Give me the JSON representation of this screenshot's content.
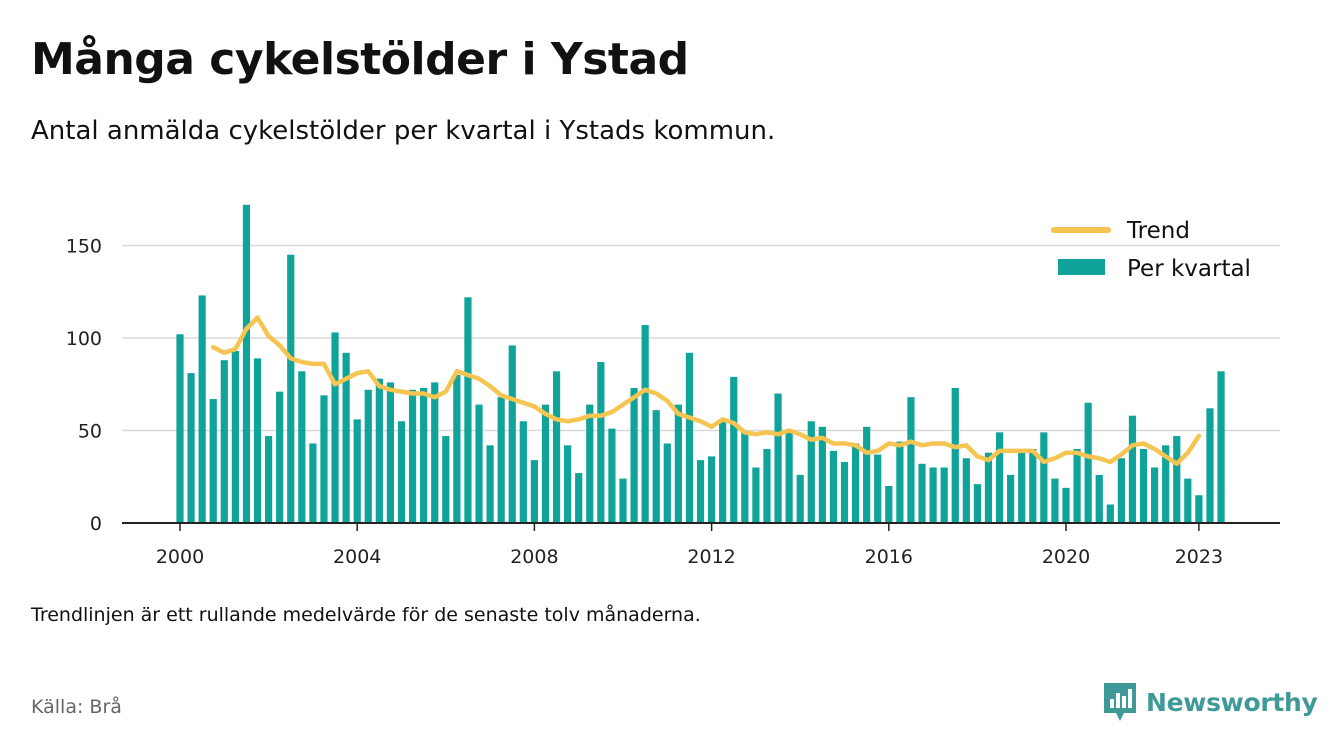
{
  "header": {
    "title": "Många cykelstölder i Ystad",
    "subtitle": "Antal anmälda cykelstölder per kvartal i Ystads kommun."
  },
  "footer": {
    "note": "Trendlinjen är ett rullande medelvärde för de senaste tolv månaderna.",
    "source": "Källa: Brå",
    "brand": "Newsworthy"
  },
  "colors": {
    "bars": "#0fa39a",
    "trend": "#f6c451",
    "grid": "#d9d9d9",
    "axis": "#222222",
    "brand": "#3f9a97"
  },
  "chart_data": {
    "type": "bar",
    "x_axis": {
      "tick_labels": [
        "2000",
        "2004",
        "2008",
        "2012",
        "2016",
        "2020",
        "2023"
      ],
      "tick_years": [
        2000,
        2004,
        2008,
        2012,
        2016,
        2020,
        2023
      ]
    },
    "y_axis": {
      "tick_labels": [
        "0",
        "50",
        "100",
        "150"
      ],
      "tick_values": [
        0,
        50,
        100,
        150
      ],
      "ylim": [
        0,
        180
      ]
    },
    "grid": true,
    "legend": {
      "position": "top-right",
      "entries": [
        "Trend",
        "Per kvartal"
      ]
    },
    "series": [
      {
        "name": "Per kvartal",
        "kind": "bar",
        "start": "2000 Q1",
        "values": [
          102,
          81,
          123,
          67,
          88,
          93,
          172,
          89,
          47,
          71,
          145,
          82,
          43,
          69,
          103,
          92,
          56,
          72,
          78,
          76,
          55,
          72,
          73,
          76,
          47,
          80,
          122,
          64,
          42,
          68,
          96,
          55,
          34,
          64,
          82,
          42,
          27,
          64,
          87,
          51,
          24,
          73,
          107,
          61,
          43,
          64,
          92,
          34,
          36,
          56,
          79,
          49,
          30,
          40,
          70,
          50,
          26,
          55,
          52,
          39,
          33,
          43,
          52,
          37,
          20,
          44,
          68,
          32,
          30,
          30,
          73,
          35,
          21,
          38,
          49,
          26,
          39,
          40,
          49,
          24,
          19,
          40,
          65,
          26,
          10,
          35,
          58,
          40,
          30,
          42,
          47,
          24,
          15,
          62,
          82
        ]
      },
      {
        "name": "Trend",
        "kind": "line",
        "start": "2000 Q4",
        "values": [
          95,
          92,
          94,
          105,
          111,
          101,
          96,
          89,
          87,
          86,
          86,
          75,
          78,
          81,
          82,
          74,
          72,
          71,
          70,
          70,
          68,
          71,
          82,
          80,
          78,
          74,
          69,
          67,
          65,
          63,
          59,
          56,
          55,
          56,
          58,
          58,
          60,
          64,
          68,
          72,
          70,
          66,
          59,
          57,
          55,
          52,
          56,
          54,
          49,
          48,
          49,
          48,
          50,
          48,
          45,
          46,
          43,
          43,
          42,
          38,
          39,
          43,
          42,
          44,
          42,
          43,
          43,
          41,
          42,
          36,
          34,
          39,
          39,
          39,
          39,
          33,
          35,
          38,
          38,
          36,
          35,
          33,
          37,
          42,
          43,
          40,
          36,
          32,
          38,
          47
        ]
      }
    ]
  }
}
